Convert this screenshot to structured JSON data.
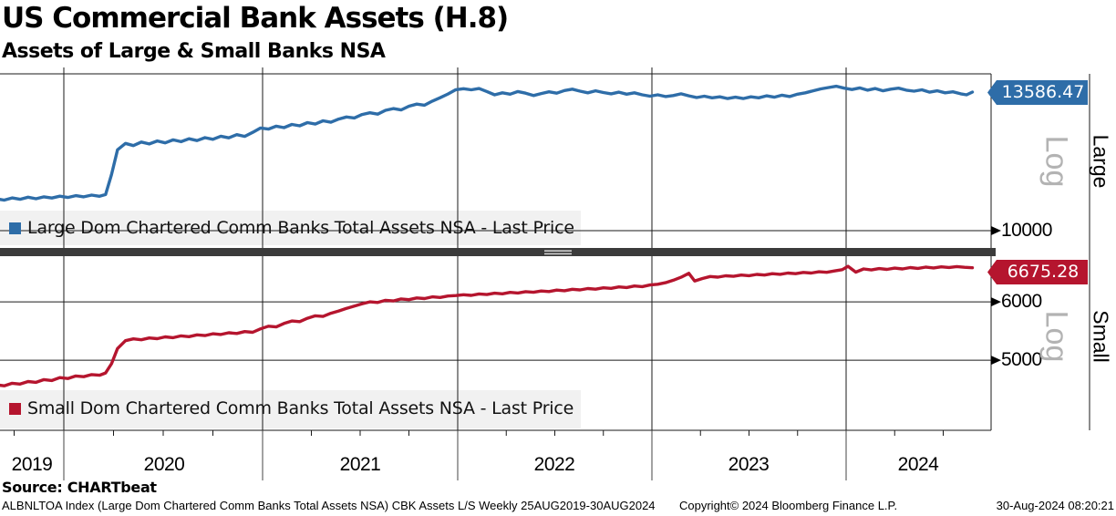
{
  "header": {
    "title": "US Commercial Bank Assets (H.8)",
    "subtitle": "Assets of Large & Small Banks NSA"
  },
  "colors": {
    "large": "#2E6DA8",
    "small": "#B5152E",
    "legend_bg": "#F1F1F1",
    "grid": "#1a1a1a",
    "divider": "#3B3B3B",
    "divider_handle": "#CFCFCF",
    "log_label": "#B3B3B3"
  },
  "xaxis": {
    "labels": [
      "2019",
      "2020",
      "2021",
      "2022",
      "2023",
      "2024"
    ]
  },
  "chart_data": [
    {
      "type": "line",
      "panel": "top",
      "legend": "Large Dom Chartered Comm Banks Total Assets NSA - Last Price",
      "scale_label": "Log",
      "panel_label": "Large",
      "last_price": 13586.47,
      "last_price_label": "13586.47",
      "ytick_labels": [
        "10000"
      ],
      "yticks": [
        10000
      ],
      "ylim": [
        9624,
        14147
      ],
      "xlim": [
        2019.66,
        2024.74
      ],
      "points": [
        [
          2019.66,
          10730
        ],
        [
          2019.7,
          10700
        ],
        [
          2019.74,
          10752
        ],
        [
          2019.78,
          10718
        ],
        [
          2019.82,
          10768
        ],
        [
          2019.86,
          10732
        ],
        [
          2019.9,
          10778
        ],
        [
          2019.94,
          10748
        ],
        [
          2019.98,
          10792
        ],
        [
          2020.02,
          10762
        ],
        [
          2020.06,
          10806
        ],
        [
          2020.1,
          10776
        ],
        [
          2020.14,
          10818
        ],
        [
          2020.18,
          10790
        ],
        [
          2020.21,
          10832
        ],
        [
          2020.24,
          11320
        ],
        [
          2020.27,
          11960
        ],
        [
          2020.31,
          12130
        ],
        [
          2020.35,
          12070
        ],
        [
          2020.39,
          12165
        ],
        [
          2020.43,
          12115
        ],
        [
          2020.47,
          12195
        ],
        [
          2020.51,
          12145
        ],
        [
          2020.55,
          12225
        ],
        [
          2020.59,
          12175
        ],
        [
          2020.63,
          12255
        ],
        [
          2020.67,
          12205
        ],
        [
          2020.71,
          12285
        ],
        [
          2020.75,
          12240
        ],
        [
          2020.79,
          12325
        ],
        [
          2020.83,
          12280
        ],
        [
          2020.87,
          12365
        ],
        [
          2020.91,
          12320
        ],
        [
          2020.95,
          12430
        ],
        [
          2020.99,
          12550
        ],
        [
          2021.03,
          12520
        ],
        [
          2021.07,
          12600
        ],
        [
          2021.11,
          12560
        ],
        [
          2021.15,
          12650
        ],
        [
          2021.19,
          12610
        ],
        [
          2021.23,
          12700
        ],
        [
          2021.27,
          12660
        ],
        [
          2021.31,
          12750
        ],
        [
          2021.35,
          12710
        ],
        [
          2021.39,
          12800
        ],
        [
          2021.43,
          12860
        ],
        [
          2021.47,
          12830
        ],
        [
          2021.51,
          12930
        ],
        [
          2021.55,
          12980
        ],
        [
          2021.59,
          12940
        ],
        [
          2021.63,
          13050
        ],
        [
          2021.67,
          13100
        ],
        [
          2021.71,
          13060
        ],
        [
          2021.75,
          13170
        ],
        [
          2021.79,
          13230
        ],
        [
          2021.83,
          13200
        ],
        [
          2021.87,
          13320
        ],
        [
          2021.91,
          13420
        ],
        [
          2021.95,
          13530
        ],
        [
          2021.99,
          13660
        ],
        [
          2022.03,
          13690
        ],
        [
          2022.07,
          13655
        ],
        [
          2022.11,
          13695
        ],
        [
          2022.15,
          13605
        ],
        [
          2022.19,
          13505
        ],
        [
          2022.23,
          13565
        ],
        [
          2022.27,
          13525
        ],
        [
          2022.31,
          13605
        ],
        [
          2022.35,
          13555
        ],
        [
          2022.39,
          13485
        ],
        [
          2022.43,
          13545
        ],
        [
          2022.47,
          13595
        ],
        [
          2022.51,
          13555
        ],
        [
          2022.55,
          13635
        ],
        [
          2022.59,
          13675
        ],
        [
          2022.63,
          13615
        ],
        [
          2022.67,
          13565
        ],
        [
          2022.71,
          13625
        ],
        [
          2022.75,
          13575
        ],
        [
          2022.79,
          13535
        ],
        [
          2022.83,
          13585
        ],
        [
          2022.87,
          13525
        ],
        [
          2022.91,
          13565
        ],
        [
          2022.95,
          13505
        ],
        [
          2022.99,
          13465
        ],
        [
          2023.03,
          13505
        ],
        [
          2023.07,
          13455
        ],
        [
          2023.11,
          13485
        ],
        [
          2023.15,
          13535
        ],
        [
          2023.19,
          13475
        ],
        [
          2023.23,
          13425
        ],
        [
          2023.27,
          13465
        ],
        [
          2023.31,
          13415
        ],
        [
          2023.35,
          13445
        ],
        [
          2023.39,
          13395
        ],
        [
          2023.43,
          13435
        ],
        [
          2023.47,
          13395
        ],
        [
          2023.51,
          13445
        ],
        [
          2023.55,
          13415
        ],
        [
          2023.59,
          13475
        ],
        [
          2023.63,
          13435
        ],
        [
          2023.67,
          13495
        ],
        [
          2023.71,
          13455
        ],
        [
          2023.75,
          13525
        ],
        [
          2023.79,
          13565
        ],
        [
          2023.83,
          13625
        ],
        [
          2023.87,
          13685
        ],
        [
          2023.91,
          13725
        ],
        [
          2023.95,
          13765
        ],
        [
          2023.99,
          13705
        ],
        [
          2024.03,
          13665
        ],
        [
          2024.07,
          13715
        ],
        [
          2024.11,
          13645
        ],
        [
          2024.15,
          13695
        ],
        [
          2024.19,
          13625
        ],
        [
          2024.23,
          13675
        ],
        [
          2024.27,
          13705
        ],
        [
          2024.31,
          13645
        ],
        [
          2024.35,
          13615
        ],
        [
          2024.39,
          13655
        ],
        [
          2024.43,
          13585
        ],
        [
          2024.47,
          13625
        ],
        [
          2024.51,
          13565
        ],
        [
          2024.55,
          13595
        ],
        [
          2024.59,
          13535
        ],
        [
          2024.62,
          13505
        ],
        [
          2024.65,
          13586.47
        ]
      ]
    },
    {
      "type": "line",
      "panel": "bottom",
      "legend": "Small Dom Chartered Comm Banks Total Assets NSA - Last Price",
      "scale_label": "Log",
      "panel_label": "Small",
      "last_price": 6675.28,
      "last_price_label": "6675.28",
      "ytick_labels": [
        "6000",
        "5000"
      ],
      "yticks": [
        6000,
        5000
      ],
      "ylim": [
        4016,
        6921
      ],
      "xlim": [
        2019.66,
        2024.74
      ],
      "points": [
        [
          2019.66,
          4630
        ],
        [
          2019.7,
          4615
        ],
        [
          2019.74,
          4652
        ],
        [
          2019.78,
          4640
        ],
        [
          2019.82,
          4678
        ],
        [
          2019.86,
          4665
        ],
        [
          2019.9,
          4705
        ],
        [
          2019.94,
          4692
        ],
        [
          2019.98,
          4735
        ],
        [
          2020.02,
          4722
        ],
        [
          2020.06,
          4760
        ],
        [
          2020.1,
          4748
        ],
        [
          2020.14,
          4780
        ],
        [
          2020.18,
          4770
        ],
        [
          2020.21,
          4805
        ],
        [
          2020.24,
          4945
        ],
        [
          2020.27,
          5185
        ],
        [
          2020.31,
          5315
        ],
        [
          2020.35,
          5345
        ],
        [
          2020.39,
          5330
        ],
        [
          2020.43,
          5360
        ],
        [
          2020.47,
          5348
        ],
        [
          2020.51,
          5378
        ],
        [
          2020.55,
          5365
        ],
        [
          2020.59,
          5395
        ],
        [
          2020.63,
          5382
        ],
        [
          2020.67,
          5412
        ],
        [
          2020.71,
          5400
        ],
        [
          2020.75,
          5430
        ],
        [
          2020.79,
          5418
        ],
        [
          2020.83,
          5448
        ],
        [
          2020.87,
          5436
        ],
        [
          2020.91,
          5468
        ],
        [
          2020.95,
          5455
        ],
        [
          2020.99,
          5515
        ],
        [
          2021.03,
          5560
        ],
        [
          2021.07,
          5548
        ],
        [
          2021.11,
          5608
        ],
        [
          2021.15,
          5652
        ],
        [
          2021.19,
          5640
        ],
        [
          2021.23,
          5700
        ],
        [
          2021.27,
          5745
        ],
        [
          2021.31,
          5732
        ],
        [
          2021.35,
          5790
        ],
        [
          2021.39,
          5832
        ],
        [
          2021.43,
          5878
        ],
        [
          2021.47,
          5920
        ],
        [
          2021.51,
          5965
        ],
        [
          2021.55,
          6000
        ],
        [
          2021.59,
          5988
        ],
        [
          2021.63,
          6030
        ],
        [
          2021.67,
          6018
        ],
        [
          2021.71,
          6055
        ],
        [
          2021.75,
          6042
        ],
        [
          2021.79,
          6075
        ],
        [
          2021.83,
          6062
        ],
        [
          2021.87,
          6095
        ],
        [
          2021.91,
          6082
        ],
        [
          2021.95,
          6110
        ],
        [
          2021.99,
          6120
        ],
        [
          2022.03,
          6135
        ],
        [
          2022.07,
          6122
        ],
        [
          2022.11,
          6150
        ],
        [
          2022.15,
          6138
        ],
        [
          2022.19,
          6165
        ],
        [
          2022.23,
          6152
        ],
        [
          2022.27,
          6180
        ],
        [
          2022.31,
          6168
        ],
        [
          2022.35,
          6195
        ],
        [
          2022.39,
          6182
        ],
        [
          2022.43,
          6208
        ],
        [
          2022.47,
          6196
        ],
        [
          2022.51,
          6225
        ],
        [
          2022.55,
          6212
        ],
        [
          2022.59,
          6240
        ],
        [
          2022.63,
          6228
        ],
        [
          2022.67,
          6255
        ],
        [
          2022.71,
          6242
        ],
        [
          2022.75,
          6270
        ],
        [
          2022.79,
          6258
        ],
        [
          2022.83,
          6288
        ],
        [
          2022.87,
          6275
        ],
        [
          2022.91,
          6305
        ],
        [
          2022.95,
          6292
        ],
        [
          2022.99,
          6325
        ],
        [
          2023.03,
          6340
        ],
        [
          2023.07,
          6370
        ],
        [
          2023.11,
          6420
        ],
        [
          2023.15,
          6480
        ],
        [
          2023.19,
          6560
        ],
        [
          2023.22,
          6405
        ],
        [
          2023.26,
          6455
        ],
        [
          2023.3,
          6495
        ],
        [
          2023.34,
          6482
        ],
        [
          2023.38,
          6510
        ],
        [
          2023.42,
          6498
        ],
        [
          2023.46,
          6525
        ],
        [
          2023.5,
          6512
        ],
        [
          2023.54,
          6538
        ],
        [
          2023.58,
          6525
        ],
        [
          2023.62,
          6552
        ],
        [
          2023.66,
          6540
        ],
        [
          2023.7,
          6565
        ],
        [
          2023.74,
          6552
        ],
        [
          2023.78,
          6578
        ],
        [
          2023.82,
          6565
        ],
        [
          2023.86,
          6592
        ],
        [
          2023.9,
          6580
        ],
        [
          2023.94,
          6608
        ],
        [
          2023.98,
          6635
        ],
        [
          2024.01,
          6705
        ],
        [
          2024.05,
          6585
        ],
        [
          2024.09,
          6650
        ],
        [
          2024.13,
          6630
        ],
        [
          2024.17,
          6658
        ],
        [
          2024.21,
          6640
        ],
        [
          2024.25,
          6668
        ],
        [
          2024.29,
          6650
        ],
        [
          2024.33,
          6678
        ],
        [
          2024.37,
          6662
        ],
        [
          2024.41,
          6688
        ],
        [
          2024.45,
          6672
        ],
        [
          2024.49,
          6695
        ],
        [
          2024.53,
          6680
        ],
        [
          2024.57,
          6700
        ],
        [
          2024.61,
          6685
        ],
        [
          2024.65,
          6675.28
        ]
      ]
    }
  ],
  "footer": {
    "source": "Source: CHARTbeat",
    "meta_left": "ALBNLTOA Index (Large Dom Chartered Comm Banks Total Assets NSA) CBK Assets L/S  Weekly 25AUG2019-30AUG2024",
    "copyright": "Copyright© 2024 Bloomberg Finance L.P.",
    "timestamp": "30-Aug-2024 08:20:21"
  }
}
